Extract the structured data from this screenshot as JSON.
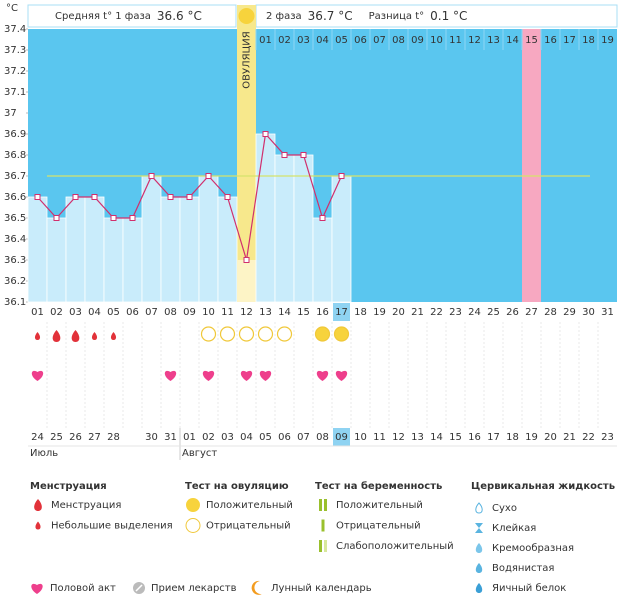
{
  "chart_data": {
    "type": "line",
    "y_unit": "°C",
    "header": {
      "phase1_label": "Средняя t° 1 фаза",
      "phase1_avg": "36.6 °C",
      "phase2_label": "2 фаза",
      "phase2_avg": "36.7 °C",
      "diff_label": "Разница t°",
      "diff": "0.1 °C"
    },
    "ovulation_label": "ОВУЛЯЦИЯ",
    "ovulation_day": "12",
    "categories": [
      "01",
      "02",
      "03",
      "04",
      "05",
      "06",
      "07",
      "08",
      "09",
      "10",
      "11",
      "12",
      "13",
      "14",
      "15",
      "16",
      "17",
      "18",
      "19",
      "20",
      "21",
      "22",
      "23",
      "24",
      "25",
      "26",
      "27",
      "28",
      "29",
      "30",
      "31"
    ],
    "values": [
      36.6,
      36.5,
      36.6,
      36.6,
      36.5,
      36.5,
      36.7,
      36.6,
      36.6,
      36.7,
      36.6,
      36.3,
      36.9,
      36.8,
      36.8,
      36.5,
      36.7,
      null,
      null,
      null,
      null,
      null,
      null,
      null,
      null,
      null,
      null,
      null,
      null,
      null,
      null
    ],
    "today": "17",
    "phase2_days": [
      "01",
      "02",
      "03",
      "04",
      "05",
      "06",
      "07",
      "08",
      "09",
      "10",
      "11",
      "12",
      "13",
      "14",
      "15",
      "16",
      "17",
      "18",
      "19"
    ],
    "marked_phase2_day": "15",
    "cover_line": 36.7,
    "ylim": [
      36.1,
      37.4
    ],
    "yticks": [
      36.1,
      36.2,
      36.3,
      36.4,
      36.5,
      36.6,
      36.7,
      36.8,
      36.9,
      37,
      37.1,
      37.2,
      37.3,
      37.4
    ],
    "colors": {
      "sky": "#5ac6ef",
      "fill": "#c9ecfb",
      "line": "#d12f6d",
      "cover": "#d5e36b",
      "ovulation": "#f7e88c",
      "ovulation_fill": "#fdf4c6",
      "marked": "#f7a8c1",
      "weekend": "#e0245e",
      "today": "#8fd3f2"
    },
    "menstruation": [
      "light",
      "heavy",
      "heavy",
      "light",
      "light",
      null,
      null,
      null,
      null,
      null,
      null,
      null,
      null,
      null,
      null,
      null,
      null,
      null,
      null,
      null,
      null,
      null,
      null,
      null,
      null,
      null,
      null,
      null,
      null,
      null,
      null
    ],
    "ovulation_test": [
      null,
      null,
      null,
      null,
      null,
      null,
      null,
      null,
      null,
      "negative",
      "negative",
      "negative",
      "negative",
      "negative",
      null,
      "positive",
      "positive",
      null,
      null,
      null,
      null,
      null,
      null,
      null,
      null,
      null,
      null,
      null,
      null,
      null,
      null
    ],
    "intercourse": [
      true,
      false,
      false,
      false,
      false,
      false,
      false,
      true,
      false,
      true,
      false,
      true,
      true,
      false,
      false,
      true,
      true,
      false,
      false,
      false,
      false,
      false,
      false,
      false,
      false,
      false,
      false,
      false,
      false,
      false,
      false
    ],
    "dates": [
      {
        "label": "24",
        "weekend": false
      },
      {
        "label": "25",
        "weekend": true
      },
      {
        "label": "26",
        "weekend": true
      },
      {
        "label": "27",
        "weekend": false
      },
      {
        "label": "28",
        "weekend": false
      },
      {
        "label": null,
        "weekend": false
      },
      {
        "label": "30",
        "weekend": false
      },
      {
        "label": "31",
        "weekend": false
      },
      {
        "label": "01",
        "weekend": true
      },
      {
        "label": "02",
        "weekend": true
      },
      {
        "label": "03",
        "weekend": false
      },
      {
        "label": "04",
        "weekend": false
      },
      {
        "label": "05",
        "weekend": false
      },
      {
        "label": "06",
        "weekend": false
      },
      {
        "label": "07",
        "weekend": false
      },
      {
        "label": "08",
        "weekend": true
      },
      {
        "label": "09",
        "weekend": false
      },
      {
        "label": "10",
        "weekend": false
      },
      {
        "label": "11",
        "weekend": false
      },
      {
        "label": "12",
        "weekend": false
      },
      {
        "label": "13",
        "weekend": false
      },
      {
        "label": "14",
        "weekend": false
      },
      {
        "label": "15",
        "weekend": true
      },
      {
        "label": "16",
        "weekend": true
      },
      {
        "label": "17",
        "weekend": false
      },
      {
        "label": "18",
        "weekend": false
      },
      {
        "label": "19",
        "weekend": false
      },
      {
        "label": "20",
        "weekend": false
      },
      {
        "label": "21",
        "weekend": false
      },
      {
        "label": "22",
        "weekend": true
      },
      {
        "label": "23",
        "weekend": true
      }
    ],
    "months": [
      {
        "label": "Июль",
        "first_date": "24"
      },
      {
        "label": "Август",
        "first_date": "01"
      }
    ]
  },
  "legend": {
    "groups": [
      {
        "title": "Менструация",
        "items": [
          "Менструация",
          "Небольшие выделения"
        ]
      },
      {
        "title": "Тест на овуляцию",
        "items": [
          "Положительный",
          "Отрицательный"
        ]
      },
      {
        "title": "Тест на беременность",
        "items": [
          "Положительный",
          "Отрицательный",
          "Слабоположительный"
        ]
      },
      {
        "title": "Цервикальная жидкость",
        "items": [
          "Сухо",
          "Клейкая",
          "Кремообразная",
          "Водянистая",
          "Яичный белок"
        ]
      }
    ],
    "extras": [
      "Половой акт",
      "Прием лекарств",
      "Лунный календарь"
    ]
  }
}
